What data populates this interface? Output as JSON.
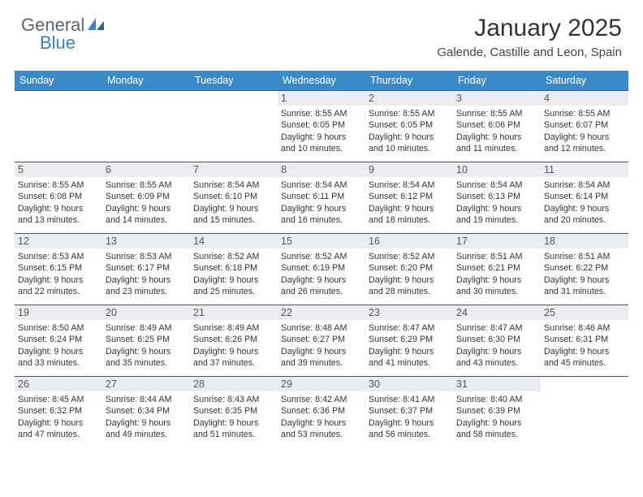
{
  "brand": {
    "part1": "General",
    "part2": "Blue"
  },
  "title": "January 2025",
  "location": "Galende, Castille and Leon, Spain",
  "colors": {
    "header_bg": "#3b8bc9",
    "border": "#2e5f8a",
    "band_bg": "#e9edf1",
    "brand_gray": "#5a6670",
    "brand_blue": "#3b7fbf"
  },
  "daysOfWeek": [
    "Sunday",
    "Monday",
    "Tuesday",
    "Wednesday",
    "Thursday",
    "Friday",
    "Saturday"
  ],
  "labels": {
    "sunrise": "Sunrise:",
    "sunset": "Sunset:",
    "daylight": "Daylight:"
  },
  "weeks": [
    [
      null,
      null,
      null,
      {
        "n": "1",
        "sr": "8:55 AM",
        "ss": "6:05 PM",
        "dl": "9 hours and 10 minutes."
      },
      {
        "n": "2",
        "sr": "8:55 AM",
        "ss": "6:05 PM",
        "dl": "9 hours and 10 minutes."
      },
      {
        "n": "3",
        "sr": "8:55 AM",
        "ss": "6:06 PM",
        "dl": "9 hours and 11 minutes."
      },
      {
        "n": "4",
        "sr": "8:55 AM",
        "ss": "6:07 PM",
        "dl": "9 hours and 12 minutes."
      }
    ],
    [
      {
        "n": "5",
        "sr": "8:55 AM",
        "ss": "6:08 PM",
        "dl": "9 hours and 13 minutes."
      },
      {
        "n": "6",
        "sr": "8:55 AM",
        "ss": "6:09 PM",
        "dl": "9 hours and 14 minutes."
      },
      {
        "n": "7",
        "sr": "8:54 AM",
        "ss": "6:10 PM",
        "dl": "9 hours and 15 minutes."
      },
      {
        "n": "8",
        "sr": "8:54 AM",
        "ss": "6:11 PM",
        "dl": "9 hours and 16 minutes."
      },
      {
        "n": "9",
        "sr": "8:54 AM",
        "ss": "6:12 PM",
        "dl": "9 hours and 18 minutes."
      },
      {
        "n": "10",
        "sr": "8:54 AM",
        "ss": "6:13 PM",
        "dl": "9 hours and 19 minutes."
      },
      {
        "n": "11",
        "sr": "8:54 AM",
        "ss": "6:14 PM",
        "dl": "9 hours and 20 minutes."
      }
    ],
    [
      {
        "n": "12",
        "sr": "8:53 AM",
        "ss": "6:15 PM",
        "dl": "9 hours and 22 minutes."
      },
      {
        "n": "13",
        "sr": "8:53 AM",
        "ss": "6:17 PM",
        "dl": "9 hours and 23 minutes."
      },
      {
        "n": "14",
        "sr": "8:52 AM",
        "ss": "6:18 PM",
        "dl": "9 hours and 25 minutes."
      },
      {
        "n": "15",
        "sr": "8:52 AM",
        "ss": "6:19 PM",
        "dl": "9 hours and 26 minutes."
      },
      {
        "n": "16",
        "sr": "8:52 AM",
        "ss": "6:20 PM",
        "dl": "9 hours and 28 minutes."
      },
      {
        "n": "17",
        "sr": "8:51 AM",
        "ss": "6:21 PM",
        "dl": "9 hours and 30 minutes."
      },
      {
        "n": "18",
        "sr": "8:51 AM",
        "ss": "6:22 PM",
        "dl": "9 hours and 31 minutes."
      }
    ],
    [
      {
        "n": "19",
        "sr": "8:50 AM",
        "ss": "6:24 PM",
        "dl": "9 hours and 33 minutes."
      },
      {
        "n": "20",
        "sr": "8:49 AM",
        "ss": "6:25 PM",
        "dl": "9 hours and 35 minutes."
      },
      {
        "n": "21",
        "sr": "8:49 AM",
        "ss": "6:26 PM",
        "dl": "9 hours and 37 minutes."
      },
      {
        "n": "22",
        "sr": "8:48 AM",
        "ss": "6:27 PM",
        "dl": "9 hours and 39 minutes."
      },
      {
        "n": "23",
        "sr": "8:47 AM",
        "ss": "6:29 PM",
        "dl": "9 hours and 41 minutes."
      },
      {
        "n": "24",
        "sr": "8:47 AM",
        "ss": "6:30 PM",
        "dl": "9 hours and 43 minutes."
      },
      {
        "n": "25",
        "sr": "8:46 AM",
        "ss": "6:31 PM",
        "dl": "9 hours and 45 minutes."
      }
    ],
    [
      {
        "n": "26",
        "sr": "8:45 AM",
        "ss": "6:32 PM",
        "dl": "9 hours and 47 minutes."
      },
      {
        "n": "27",
        "sr": "8:44 AM",
        "ss": "6:34 PM",
        "dl": "9 hours and 49 minutes."
      },
      {
        "n": "28",
        "sr": "8:43 AM",
        "ss": "6:35 PM",
        "dl": "9 hours and 51 minutes."
      },
      {
        "n": "29",
        "sr": "8:42 AM",
        "ss": "6:36 PM",
        "dl": "9 hours and 53 minutes."
      },
      {
        "n": "30",
        "sr": "8:41 AM",
        "ss": "6:37 PM",
        "dl": "9 hours and 56 minutes."
      },
      {
        "n": "31",
        "sr": "8:40 AM",
        "ss": "6:39 PM",
        "dl": "9 hours and 58 minutes."
      },
      null
    ]
  ]
}
